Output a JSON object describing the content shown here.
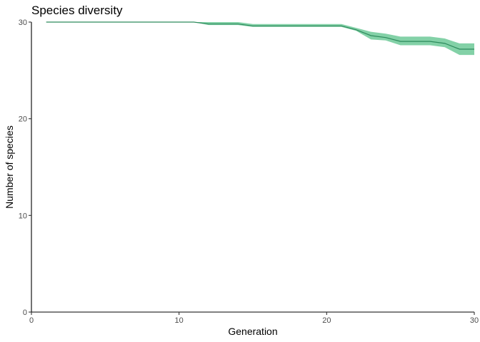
{
  "chart_data": {
    "type": "line",
    "title": "Species diversity",
    "xlabel": "Generation",
    "ylabel": "Number of species",
    "xlim": [
      0,
      30
    ],
    "ylim": [
      0,
      30
    ],
    "x_ticks": [
      0,
      10,
      20,
      30
    ],
    "y_ticks": [
      0,
      10,
      20,
      30
    ],
    "grid": false,
    "colors": {
      "ribbon": "#41b978",
      "line": "#2d8a5c",
      "axis": "#000000"
    },
    "series": [
      {
        "x": [
          1,
          2,
          3,
          4,
          5,
          6,
          7,
          8,
          9,
          10,
          11,
          12,
          13,
          14,
          15,
          16,
          17,
          18,
          19,
          20,
          21,
          22,
          23,
          24,
          25,
          26,
          27,
          28,
          29,
          30
        ],
        "y": [
          30,
          30,
          30,
          30,
          30,
          30,
          30,
          30,
          30,
          30,
          30,
          29.8,
          29.8,
          29.8,
          29.6,
          29.6,
          29.6,
          29.6,
          29.6,
          29.6,
          29.6,
          29.2,
          28.6,
          28.4,
          28.0,
          28.0,
          28.0,
          27.8,
          27.2,
          27.2
        ],
        "lower": [
          30,
          30,
          30,
          30,
          30,
          30,
          30,
          30,
          30,
          30,
          30,
          29.7,
          29.7,
          29.7,
          29.5,
          29.5,
          29.5,
          29.5,
          29.5,
          29.5,
          29.5,
          29.1,
          28.2,
          28.1,
          27.6,
          27.6,
          27.6,
          27.4,
          26.6,
          26.6
        ],
        "upper": [
          30,
          30,
          30,
          30,
          30,
          30,
          30,
          30,
          30,
          30,
          30,
          30.0,
          30.0,
          30.0,
          29.8,
          29.8,
          29.8,
          29.8,
          29.8,
          29.8,
          29.8,
          29.4,
          29.0,
          28.8,
          28.5,
          28.5,
          28.5,
          28.3,
          27.8,
          27.8
        ]
      }
    ]
  }
}
